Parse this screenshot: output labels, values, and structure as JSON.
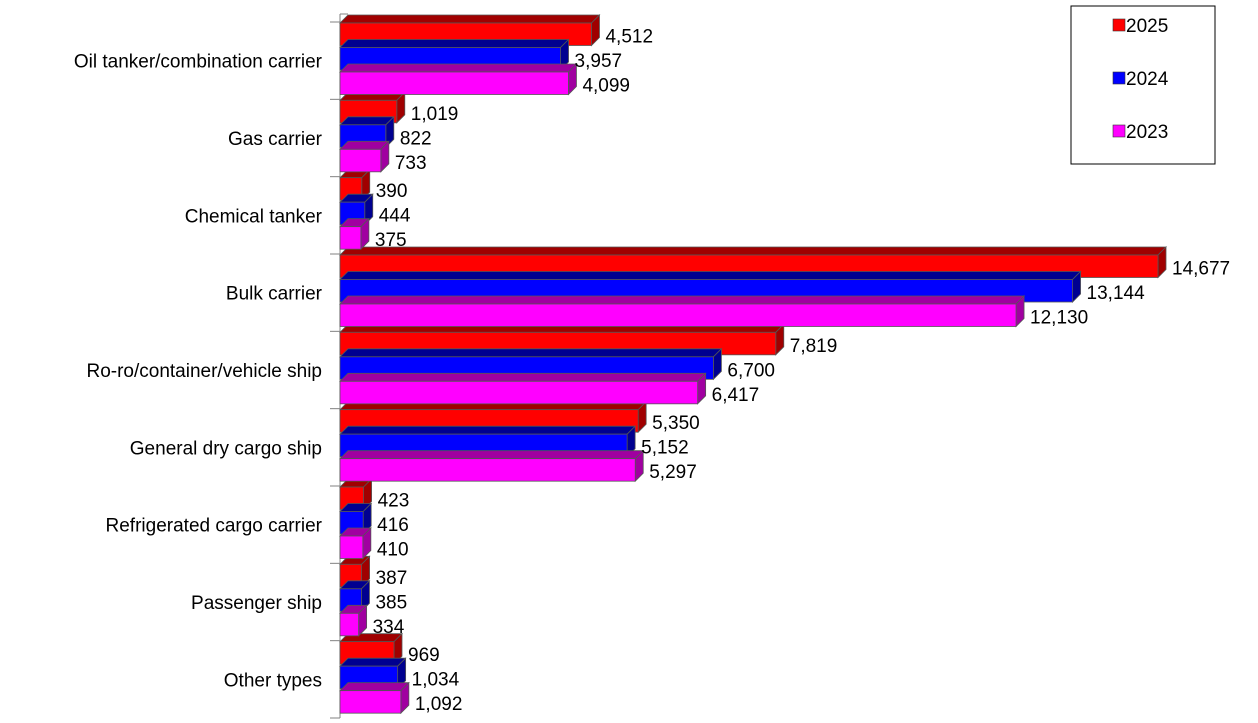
{
  "chart_data": {
    "type": "bar",
    "orientation": "horizontal",
    "style": "3d",
    "categories": [
      "Oil tanker/combination carrier",
      "Gas carrier",
      "Chemical tanker",
      "Bulk carrier",
      "Ro-ro/container/vehicle ship",
      "General dry cargo ship",
      "Refrigerated cargo carrier",
      "Passenger ship",
      "Other types"
    ],
    "series": [
      {
        "name": "2025",
        "color": "#ff0000",
        "side_color": "#a00000",
        "values": [
          4512,
          1019,
          390,
          14677,
          7819,
          5350,
          423,
          387,
          969
        ],
        "labels": [
          "4,512",
          "1,019",
          "390",
          "14,677",
          "7,819",
          "5,350",
          "423",
          "387",
          "969"
        ]
      },
      {
        "name": "2024",
        "color": "#0000ff",
        "side_color": "#000090",
        "values": [
          3957,
          822,
          444,
          13144,
          6700,
          5152,
          416,
          385,
          1034
        ],
        "labels": [
          "3,957",
          "822",
          "444",
          "13,144",
          "6,700",
          "5,152",
          "416",
          "385",
          "1,034"
        ]
      },
      {
        "name": "2023",
        "color": "#ff00ff",
        "side_color": "#a000a0",
        "values": [
          4099,
          733,
          375,
          12130,
          6417,
          5297,
          410,
          334,
          1092
        ],
        "labels": [
          "4,099",
          "733",
          "375",
          "12,130",
          "6,417",
          "5,297",
          "410",
          "334",
          "1,092"
        ]
      }
    ],
    "legend_position": "top-right",
    "grid": false,
    "xlim": [
      0,
      14677
    ]
  }
}
